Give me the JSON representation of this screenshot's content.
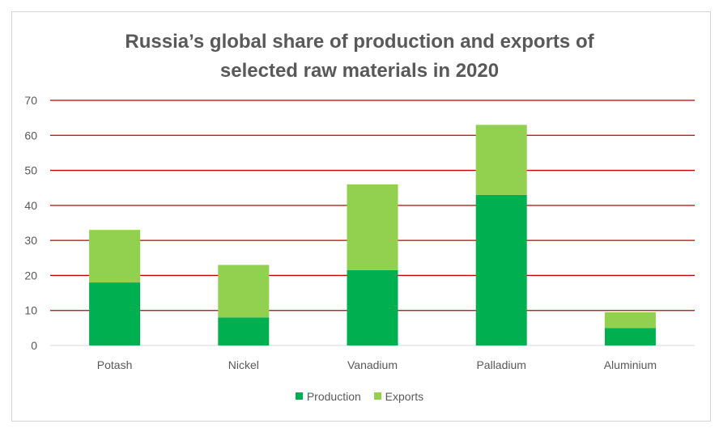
{
  "chart_data": {
    "type": "bar",
    "stacked": true,
    "title": [
      "Russia’s global share of production and exports of",
      "selected raw materials in 2020"
    ],
    "categories": [
      "Potash",
      "Nickel",
      "Vanadium",
      "Palladium",
      "Aluminium"
    ],
    "series": [
      {
        "name": "Production",
        "values": [
          18,
          8,
          21.5,
          43,
          5
        ],
        "color": "#00b050"
      },
      {
        "name": "Exports",
        "values": [
          15,
          15,
          24.5,
          20,
          4.5
        ],
        "color": "#92d050"
      }
    ],
    "ylim": [
      0,
      70
    ],
    "yticks": [
      "0",
      "10",
      "20",
      "30",
      "40",
      "50",
      "60",
      "70"
    ],
    "gridline_color": "#c00000",
    "grid": true,
    "legend_position": "bottom"
  }
}
